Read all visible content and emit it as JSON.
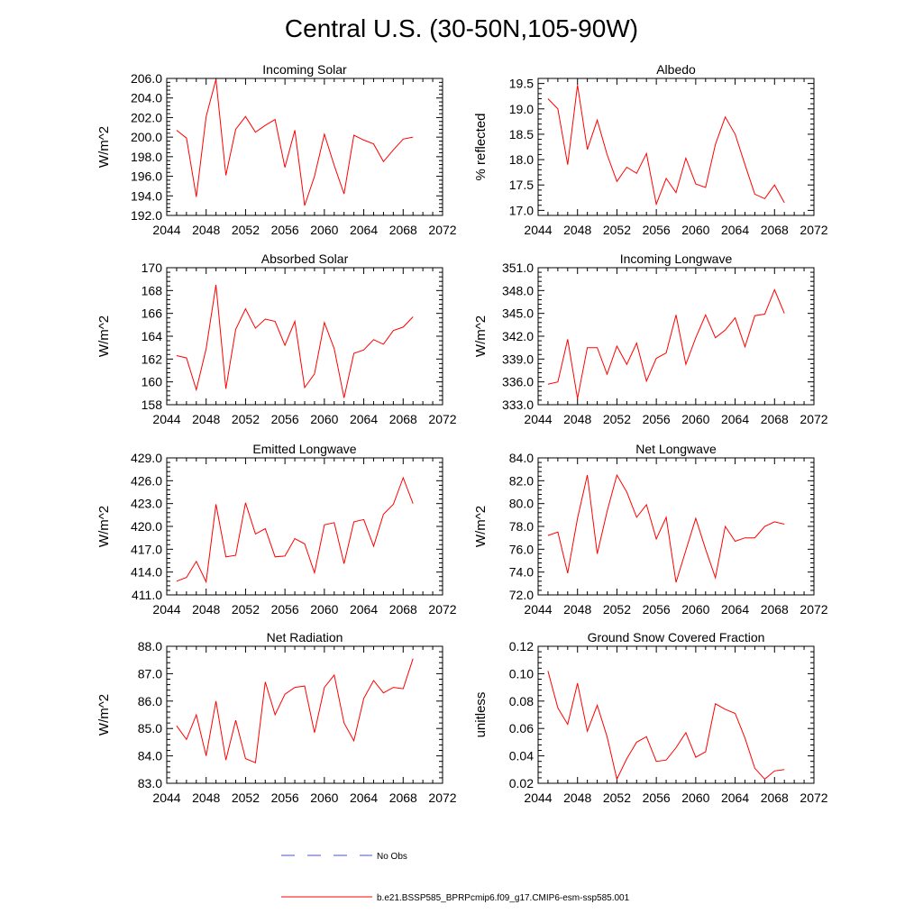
{
  "title": "Central U.S. (30-50N,105-90W)",
  "legend": {
    "obs_label": "No Obs",
    "model_label": "b.e21.BSSP585_BPRPcmip6.f09_g17.CMIP6-esm-ssp585.001"
  },
  "colors": {
    "model": "#ff0000",
    "obs": "#4b55c8",
    "axis": "#000000"
  },
  "chart_data": [
    {
      "type": "line",
      "title": "Incoming Solar",
      "ylabel": "W/m^2",
      "xlim": [
        2044,
        2072
      ],
      "ylim": [
        192,
        206
      ],
      "xticks": [
        "2044",
        "2048",
        "2052",
        "2056",
        "2060",
        "2064",
        "2068",
        "2072"
      ],
      "yticks": [
        "192.0",
        "194.0",
        "196.0",
        "198.0",
        "200.0",
        "202.0",
        "204.0",
        "206.0"
      ],
      "series": [
        {
          "x": [
            2045,
            2046,
            2047,
            2048,
            2049,
            2050,
            2051,
            2052,
            2053,
            2054,
            2055,
            2056,
            2057,
            2058,
            2059,
            2060,
            2061,
            2062,
            2063,
            2064,
            2065,
            2066,
            2067,
            2068,
            2069
          ],
          "values": [
            200.7,
            199.9,
            193.9,
            202.1,
            205.9,
            196.1,
            200.8,
            202.1,
            200.5,
            201.2,
            201.8,
            196.9,
            200.7,
            193.0,
            196.0,
            200.3,
            197.1,
            194.2,
            200.2,
            199.7,
            199.3,
            197.5,
            198.7,
            199.8,
            200.0
          ]
        }
      ]
    },
    {
      "type": "line",
      "title": "Albedo",
      "ylabel": "% reflected",
      "xlim": [
        2044,
        2072
      ],
      "ylim": [
        16.9,
        19.6
      ],
      "xticks": [
        "2044",
        "2048",
        "2052",
        "2056",
        "2060",
        "2064",
        "2068",
        "2072"
      ],
      "yticks": [
        "17.0",
        "17.5",
        "18.0",
        "18.5",
        "19.0",
        "19.5"
      ],
      "series": [
        {
          "x": [
            2045,
            2046,
            2047,
            2048,
            2049,
            2050,
            2051,
            2052,
            2053,
            2054,
            2055,
            2056,
            2057,
            2058,
            2059,
            2060,
            2061,
            2062,
            2063,
            2064,
            2065,
            2066,
            2067,
            2068,
            2069
          ],
          "values": [
            19.2,
            19.0,
            17.9,
            19.47,
            18.2,
            18.78,
            18.1,
            17.57,
            17.85,
            17.73,
            18.12,
            17.12,
            17.63,
            17.35,
            18.03,
            17.52,
            17.45,
            18.3,
            18.84,
            18.5,
            17.9,
            17.32,
            17.23,
            17.5,
            17.15
          ]
        }
      ]
    },
    {
      "type": "line",
      "title": "Absorbed Solar",
      "ylabel": "W/m^2",
      "xlim": [
        2044,
        2072
      ],
      "ylim": [
        158,
        170
      ],
      "xticks": [
        "2044",
        "2048",
        "2052",
        "2056",
        "2060",
        "2064",
        "2068",
        "2072"
      ],
      "yticks": [
        "158",
        "160",
        "162",
        "164",
        "166",
        "168",
        "170"
      ],
      "series": [
        {
          "x": [
            2045,
            2046,
            2047,
            2048,
            2049,
            2050,
            2051,
            2052,
            2053,
            2054,
            2055,
            2056,
            2057,
            2058,
            2059,
            2060,
            2061,
            2062,
            2063,
            2064,
            2065,
            2066,
            2067,
            2068,
            2069
          ],
          "values": [
            162.3,
            162.1,
            159.3,
            162.9,
            168.5,
            159.4,
            164.6,
            166.4,
            164.7,
            165.5,
            165.3,
            163.2,
            165.3,
            159.5,
            160.7,
            165.2,
            162.9,
            158.6,
            162.5,
            162.8,
            163.7,
            163.3,
            164.5,
            164.8,
            165.7
          ]
        }
      ]
    },
    {
      "type": "line",
      "title": "Incoming Longwave",
      "ylabel": "W/m^2",
      "xlim": [
        2044,
        2072
      ],
      "ylim": [
        333,
        351
      ],
      "xticks": [
        "2044",
        "2048",
        "2052",
        "2056",
        "2060",
        "2064",
        "2068",
        "2072"
      ],
      "yticks": [
        "333.0",
        "336.0",
        "339.0",
        "342.0",
        "345.0",
        "348.0",
        "351.0"
      ],
      "series": [
        {
          "x": [
            2045,
            2046,
            2047,
            2048,
            2049,
            2050,
            2051,
            2052,
            2053,
            2054,
            2055,
            2056,
            2057,
            2058,
            2059,
            2060,
            2061,
            2062,
            2063,
            2064,
            2065,
            2066,
            2067,
            2068,
            2069
          ],
          "values": [
            335.7,
            336.0,
            341.6,
            333.8,
            340.5,
            340.5,
            337.0,
            340.7,
            338.3,
            341.1,
            336.1,
            339.1,
            339.8,
            344.8,
            338.3,
            341.8,
            344.8,
            341.8,
            342.8,
            344.4,
            340.6,
            344.7,
            344.9,
            348.1,
            345.0
          ]
        }
      ]
    },
    {
      "type": "line",
      "title": "Emitted Longwave",
      "ylabel": "W/m^2",
      "xlim": [
        2044,
        2072
      ],
      "ylim": [
        411,
        429
      ],
      "xticks": [
        "2044",
        "2048",
        "2052",
        "2056",
        "2060",
        "2064",
        "2068",
        "2072"
      ],
      "yticks": [
        "411.0",
        "414.0",
        "417.0",
        "420.0",
        "423.0",
        "426.0",
        "429.0"
      ],
      "series": [
        {
          "x": [
            2045,
            2046,
            2047,
            2048,
            2049,
            2050,
            2051,
            2052,
            2053,
            2054,
            2055,
            2056,
            2057,
            2058,
            2059,
            2060,
            2061,
            2062,
            2063,
            2064,
            2065,
            2066,
            2067,
            2068,
            2069
          ],
          "values": [
            412.8,
            413.3,
            415.4,
            412.7,
            422.9,
            416.0,
            416.2,
            423.1,
            419.0,
            419.7,
            416.0,
            416.1,
            418.4,
            417.7,
            413.9,
            420.2,
            420.5,
            415.1,
            420.6,
            420.9,
            417.4,
            421.6,
            422.9,
            426.4,
            423.0
          ]
        }
      ]
    },
    {
      "type": "line",
      "title": "Net Longwave",
      "ylabel": "W/m^2",
      "xlim": [
        2044,
        2072
      ],
      "ylim": [
        72,
        84
      ],
      "xticks": [
        "2044",
        "2048",
        "2052",
        "2056",
        "2060",
        "2064",
        "2068",
        "2072"
      ],
      "yticks": [
        "72.0",
        "74.0",
        "76.0",
        "78.0",
        "80.0",
        "82.0",
        "84.0"
      ],
      "series": [
        {
          "x": [
            2045,
            2046,
            2047,
            2048,
            2049,
            2050,
            2051,
            2052,
            2053,
            2054,
            2055,
            2056,
            2057,
            2058,
            2059,
            2060,
            2061,
            2062,
            2063,
            2064,
            2065,
            2066,
            2067,
            2068,
            2069
          ],
          "values": [
            77.2,
            77.5,
            73.9,
            78.7,
            82.5,
            75.6,
            79.3,
            82.5,
            81.0,
            78.8,
            79.9,
            76.9,
            78.8,
            73.1,
            75.9,
            78.7,
            76.0,
            73.5,
            78.0,
            76.7,
            77.0,
            77.0,
            78.0,
            78.4,
            78.2
          ]
        }
      ]
    },
    {
      "type": "line",
      "title": "Net Radiation",
      "ylabel": "W/m^2",
      "xlim": [
        2044,
        2072
      ],
      "ylim": [
        83,
        88
      ],
      "xticks": [
        "2044",
        "2048",
        "2052",
        "2056",
        "2060",
        "2064",
        "2068",
        "2072"
      ],
      "yticks": [
        "83.0",
        "84.0",
        "85.0",
        "86.0",
        "87.0",
        "88.0"
      ],
      "series": [
        {
          "x": [
            2045,
            2046,
            2047,
            2048,
            2049,
            2050,
            2051,
            2052,
            2053,
            2054,
            2055,
            2056,
            2057,
            2058,
            2059,
            2060,
            2061,
            2062,
            2063,
            2064,
            2065,
            2066,
            2067,
            2068,
            2069
          ],
          "values": [
            85.1,
            84.6,
            85.5,
            84.0,
            86.0,
            83.85,
            85.3,
            83.9,
            83.75,
            86.7,
            85.5,
            86.25,
            86.5,
            86.55,
            84.85,
            86.5,
            86.95,
            85.2,
            84.55,
            86.1,
            86.75,
            86.3,
            86.5,
            86.45,
            87.55
          ]
        }
      ]
    },
    {
      "type": "line",
      "title": "Ground Snow Covered Fraction",
      "ylabel": "unitless",
      "xlim": [
        2044,
        2072
      ],
      "ylim": [
        0.02,
        0.12
      ],
      "xticks": [
        "2044",
        "2048",
        "2052",
        "2056",
        "2060",
        "2064",
        "2068",
        "2072"
      ],
      "yticks": [
        "0.02",
        "0.04",
        "0.06",
        "0.08",
        "0.10",
        "0.12"
      ],
      "series": [
        {
          "x": [
            2045,
            2046,
            2047,
            2048,
            2049,
            2050,
            2051,
            2052,
            2053,
            2054,
            2055,
            2056,
            2057,
            2058,
            2059,
            2060,
            2061,
            2062,
            2063,
            2064,
            2065,
            2066,
            2067,
            2068,
            2069
          ],
          "values": [
            0.102,
            0.075,
            0.063,
            0.093,
            0.058,
            0.077,
            0.054,
            0.023,
            0.038,
            0.05,
            0.054,
            0.036,
            0.037,
            0.046,
            0.057,
            0.039,
            0.043,
            0.078,
            0.074,
            0.071,
            0.053,
            0.031,
            0.023,
            0.029,
            0.03
          ]
        }
      ]
    }
  ]
}
